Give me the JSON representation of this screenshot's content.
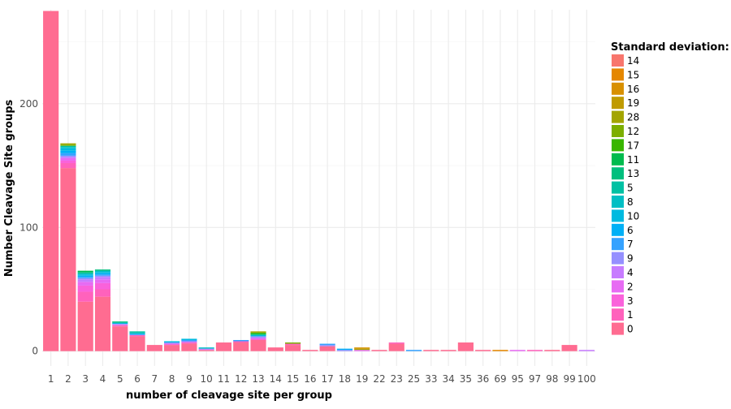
{
  "chart_data": {
    "type": "bar",
    "stacked": true,
    "xlabel": "number of cleavage site per group",
    "ylabel": "Number Cleavage Site groups",
    "ylim": [
      -12,
      276
    ],
    "yticks": [
      0,
      100,
      200
    ],
    "grid": true,
    "legend": {
      "title": "Standard deviation:",
      "placement": "right",
      "entries": [
        {
          "name": "14",
          "color": "#F8766D"
        },
        {
          "name": "15",
          "color": "#E58700"
        },
        {
          "name": "16",
          "color": "#D89000"
        },
        {
          "name": "19",
          "color": "#C09B00"
        },
        {
          "name": "28",
          "color": "#A3A500"
        },
        {
          "name": "12",
          "color": "#7CAE00"
        },
        {
          "name": "17",
          "color": "#39B600"
        },
        {
          "name": "11",
          "color": "#00BB4E"
        },
        {
          "name": "13",
          "color": "#00BF7D"
        },
        {
          "name": "5",
          "color": "#00C1A3"
        },
        {
          "name": "8",
          "color": "#00BFC4"
        },
        {
          "name": "10",
          "color": "#00BAE0"
        },
        {
          "name": "6",
          "color": "#00B0F6"
        },
        {
          "name": "7",
          "color": "#35A2FF"
        },
        {
          "name": "9",
          "color": "#9590FF"
        },
        {
          "name": "4",
          "color": "#C77CFF"
        },
        {
          "name": "2",
          "color": "#E76BF3"
        },
        {
          "name": "3",
          "color": "#FA62DB"
        },
        {
          "name": "1",
          "color": "#FF62BC"
        },
        {
          "name": "0",
          "color": "#FF6C91"
        }
      ]
    },
    "categories": [
      "1",
      "2",
      "3",
      "4",
      "5",
      "6",
      "7",
      "8",
      "9",
      "10",
      "11",
      "12",
      "13",
      "14",
      "15",
      "16",
      "17",
      "18",
      "19",
      "22",
      "23",
      "25",
      "33",
      "34",
      "35",
      "36",
      "69",
      "95",
      "97",
      "98",
      "99",
      "100"
    ],
    "bars": [
      [
        {
          "sd": "0",
          "v": 275
        }
      ],
      [
        {
          "sd": "0",
          "v": 148
        },
        {
          "sd": "1",
          "v": 4
        },
        {
          "sd": "3",
          "v": 2
        },
        {
          "sd": "2",
          "v": 2
        },
        {
          "sd": "4",
          "v": 1
        },
        {
          "sd": "9",
          "v": 1
        },
        {
          "sd": "7",
          "v": 2
        },
        {
          "sd": "6",
          "v": 2
        },
        {
          "sd": "10",
          "v": 2
        },
        {
          "sd": "8",
          "v": 1
        },
        {
          "sd": "5",
          "v": 1
        },
        {
          "sd": "12",
          "v": 1
        },
        {
          "sd": "28",
          "v": 1
        }
      ],
      [
        {
          "sd": "0",
          "v": 40
        },
        {
          "sd": "1",
          "v": 8
        },
        {
          "sd": "3",
          "v": 5
        },
        {
          "sd": "2",
          "v": 3
        },
        {
          "sd": "4",
          "v": 2
        },
        {
          "sd": "9",
          "v": 1
        },
        {
          "sd": "7",
          "v": 1
        },
        {
          "sd": "6",
          "v": 1
        },
        {
          "sd": "10",
          "v": 1
        },
        {
          "sd": "8",
          "v": 1
        },
        {
          "sd": "13",
          "v": 1
        },
        {
          "sd": "11",
          "v": 1
        }
      ],
      [
        {
          "sd": "0",
          "v": 44
        },
        {
          "sd": "1",
          "v": 6
        },
        {
          "sd": "3",
          "v": 5
        },
        {
          "sd": "2",
          "v": 3
        },
        {
          "sd": "4",
          "v": 2
        },
        {
          "sd": "9",
          "v": 1
        },
        {
          "sd": "7",
          "v": 1
        },
        {
          "sd": "6",
          "v": 1
        },
        {
          "sd": "10",
          "v": 1
        },
        {
          "sd": "8",
          "v": 1
        },
        {
          "sd": "13",
          "v": 1
        }
      ],
      [
        {
          "sd": "0",
          "v": 20
        },
        {
          "sd": "1",
          "v": 1
        },
        {
          "sd": "4",
          "v": 1
        },
        {
          "sd": "10",
          "v": 1
        },
        {
          "sd": "13",
          "v": 1
        }
      ],
      [
        {
          "sd": "0",
          "v": 12
        },
        {
          "sd": "1",
          "v": 1
        },
        {
          "sd": "7",
          "v": 1
        },
        {
          "sd": "8",
          "v": 1
        },
        {
          "sd": "5",
          "v": 1
        }
      ],
      [
        {
          "sd": "0",
          "v": 5
        }
      ],
      [
        {
          "sd": "0",
          "v": 5
        },
        {
          "sd": "3",
          "v": 1
        },
        {
          "sd": "9",
          "v": 1
        },
        {
          "sd": "10",
          "v": 1
        }
      ],
      [
        {
          "sd": "0",
          "v": 6
        },
        {
          "sd": "1",
          "v": 1
        },
        {
          "sd": "4",
          "v": 1
        },
        {
          "sd": "7",
          "v": 1
        },
        {
          "sd": "10",
          "v": 1
        }
      ],
      [
        {
          "sd": "0",
          "v": 1
        },
        {
          "sd": "4",
          "v": 1
        },
        {
          "sd": "8",
          "v": 1
        }
      ],
      [
        {
          "sd": "0",
          "v": 7
        }
      ],
      [
        {
          "sd": "0",
          "v": 7
        },
        {
          "sd": "1",
          "v": 1
        },
        {
          "sd": "7",
          "v": 1
        }
      ],
      [
        {
          "sd": "0",
          "v": 9
        },
        {
          "sd": "3",
          "v": 1
        },
        {
          "sd": "4",
          "v": 1
        },
        {
          "sd": "9",
          "v": 1
        },
        {
          "sd": "10",
          "v": 1
        },
        {
          "sd": "13",
          "v": 1
        },
        {
          "sd": "17",
          "v": 1
        },
        {
          "sd": "28",
          "v": 1
        }
      ],
      [
        {
          "sd": "0",
          "v": 3
        }
      ],
      [
        {
          "sd": "0",
          "v": 5
        },
        {
          "sd": "1",
          "v": 1
        },
        {
          "sd": "12",
          "v": 1
        }
      ],
      [
        {
          "sd": "0",
          "v": 1
        }
      ],
      [
        {
          "sd": "0",
          "v": 4
        },
        {
          "sd": "9",
          "v": 1
        },
        {
          "sd": "7",
          "v": 1
        }
      ],
      [
        {
          "sd": "9",
          "v": 1
        },
        {
          "sd": "6",
          "v": 1
        }
      ],
      [
        {
          "sd": "2",
          "v": 1
        },
        {
          "sd": "28",
          "v": 1
        },
        {
          "sd": "16",
          "v": 1
        }
      ],
      [
        {
          "sd": "0",
          "v": 1
        }
      ],
      [
        {
          "sd": "0",
          "v": 6
        },
        {
          "sd": "1",
          "v": 1
        }
      ],
      [
        {
          "sd": "7",
          "v": 1
        }
      ],
      [
        {
          "sd": "0",
          "v": 1
        }
      ],
      [
        {
          "sd": "0",
          "v": 1
        }
      ],
      [
        {
          "sd": "0",
          "v": 7
        }
      ],
      [
        {
          "sd": "0",
          "v": 1
        }
      ],
      [
        {
          "sd": "15",
          "v": 1
        }
      ],
      [
        {
          "sd": "2",
          "v": 1
        }
      ],
      [
        {
          "sd": "1",
          "v": 1
        }
      ],
      [
        {
          "sd": "0",
          "v": 1
        }
      ],
      [
        {
          "sd": "0",
          "v": 5
        }
      ],
      [
        {
          "sd": "4",
          "v": 1
        }
      ]
    ]
  }
}
